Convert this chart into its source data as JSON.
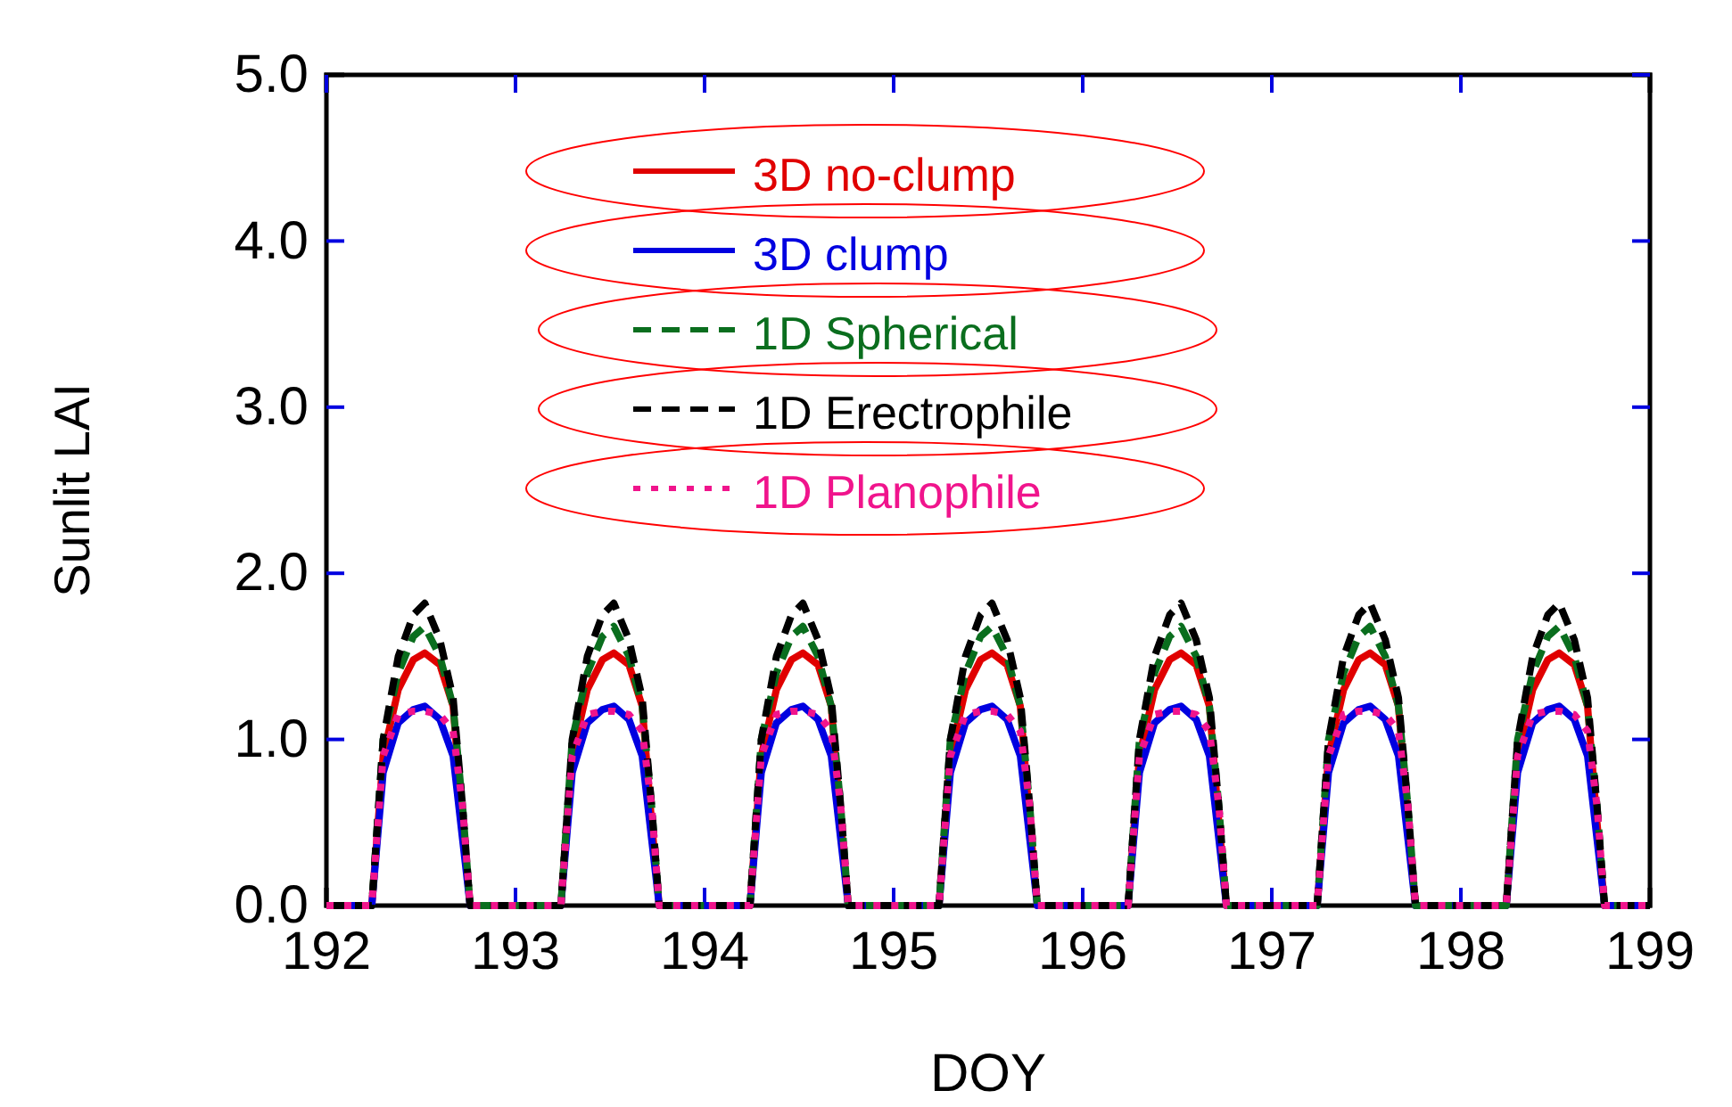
{
  "chart_data": {
    "type": "line",
    "xlabel": "DOY",
    "ylabel": "Sunlit LAI",
    "x": [
      192,
      192.24,
      192.3,
      192.38,
      192.46,
      192.52,
      192.6,
      192.67,
      192.72,
      192.76,
      193.24,
      193.3,
      193.38,
      193.46,
      193.52,
      193.6,
      193.67,
      193.72,
      193.76,
      194.24,
      194.3,
      194.38,
      194.46,
      194.52,
      194.6,
      194.67,
      194.72,
      194.76,
      195.24,
      195.3,
      195.38,
      195.46,
      195.52,
      195.6,
      195.67,
      195.72,
      195.76,
      196.24,
      196.3,
      196.38,
      196.46,
      196.52,
      196.6,
      196.67,
      196.72,
      196.76,
      197.24,
      197.3,
      197.38,
      197.46,
      197.52,
      197.6,
      197.67,
      197.72,
      197.76,
      198.24,
      198.3,
      198.38,
      198.46,
      198.52,
      198.6,
      198.67,
      198.72,
      198.76,
      199
    ],
    "series": [
      {
        "name": "3D no-clump",
        "color": "#e00000",
        "line_style": "solid",
        "values": [
          0,
          0,
          0.9,
          1.3,
          1.48,
          1.52,
          1.45,
          1.2,
          0.5,
          0,
          0,
          0.9,
          1.3,
          1.48,
          1.52,
          1.45,
          1.2,
          0.5,
          0,
          0,
          0.9,
          1.3,
          1.48,
          1.52,
          1.45,
          1.2,
          0.5,
          0,
          0,
          0.9,
          1.3,
          1.48,
          1.52,
          1.45,
          1.2,
          0.5,
          0,
          0,
          0.9,
          1.3,
          1.48,
          1.52,
          1.45,
          1.2,
          0.5,
          0,
          0,
          0.9,
          1.3,
          1.48,
          1.52,
          1.45,
          1.2,
          0.5,
          0,
          0,
          0.9,
          1.3,
          1.48,
          1.52,
          1.45,
          1.2,
          0.5,
          0,
          0
        ]
      },
      {
        "name": "3D clump",
        "color": "#0000e0",
        "line_style": "solid",
        "values": [
          0,
          0,
          0.8,
          1.1,
          1.18,
          1.2,
          1.12,
          0.9,
          0.4,
          0,
          0,
          0.8,
          1.1,
          1.18,
          1.2,
          1.12,
          0.9,
          0.4,
          0,
          0,
          0.8,
          1.1,
          1.18,
          1.2,
          1.12,
          0.9,
          0.4,
          0,
          0,
          0.8,
          1.1,
          1.18,
          1.2,
          1.12,
          0.9,
          0.4,
          0,
          0,
          0.8,
          1.1,
          1.18,
          1.2,
          1.12,
          0.9,
          0.4,
          0,
          0,
          0.8,
          1.1,
          1.18,
          1.2,
          1.12,
          0.9,
          0.4,
          0,
          0,
          0.8,
          1.1,
          1.18,
          1.2,
          1.12,
          0.9,
          0.4,
          0,
          0
        ]
      },
      {
        "name": "1D Spherical",
        "color": "#0a6e1e",
        "line_style": "dashed",
        "values": [
          0,
          0,
          1.0,
          1.4,
          1.62,
          1.68,
          1.5,
          1.2,
          0.6,
          0,
          0,
          1.0,
          1.4,
          1.62,
          1.68,
          1.5,
          1.2,
          0.6,
          0,
          0,
          1.0,
          1.4,
          1.62,
          1.68,
          1.5,
          1.2,
          0.6,
          0,
          0,
          1.0,
          1.4,
          1.62,
          1.68,
          1.5,
          1.2,
          0.6,
          0,
          0,
          1.0,
          1.4,
          1.62,
          1.68,
          1.5,
          1.2,
          0.6,
          0,
          0,
          1.0,
          1.4,
          1.62,
          1.68,
          1.5,
          1.2,
          0.6,
          0,
          0,
          1.0,
          1.4,
          1.62,
          1.68,
          1.5,
          1.2,
          0.6,
          0,
          0
        ]
      },
      {
        "name": "1D Erectrophile",
        "color": "#000000",
        "line_style": "dashed",
        "values": [
          0,
          0,
          1.0,
          1.5,
          1.75,
          1.82,
          1.6,
          1.25,
          0.6,
          0,
          0,
          1.0,
          1.5,
          1.75,
          1.82,
          1.6,
          1.25,
          0.6,
          0,
          0,
          1.0,
          1.5,
          1.75,
          1.82,
          1.6,
          1.25,
          0.6,
          0,
          0,
          1.0,
          1.5,
          1.75,
          1.82,
          1.6,
          1.25,
          0.6,
          0,
          0,
          1.0,
          1.5,
          1.75,
          1.82,
          1.6,
          1.25,
          0.6,
          0,
          0,
          1.0,
          1.5,
          1.75,
          1.82,
          1.6,
          1.25,
          0.6,
          0,
          0,
          1.0,
          1.5,
          1.75,
          1.82,
          1.6,
          1.25,
          0.6,
          0,
          0
        ]
      },
      {
        "name": "1D Planophile",
        "color": "#f0148c",
        "line_style": "dotted",
        "values": [
          0,
          0,
          0.9,
          1.15,
          1.17,
          1.17,
          1.15,
          1.05,
          0.6,
          0,
          0,
          0.9,
          1.15,
          1.17,
          1.17,
          1.15,
          1.05,
          0.6,
          0,
          0,
          0.9,
          1.15,
          1.17,
          1.17,
          1.15,
          1.05,
          0.6,
          0,
          0,
          0.9,
          1.15,
          1.17,
          1.17,
          1.15,
          1.05,
          0.6,
          0,
          0,
          0.9,
          1.15,
          1.17,
          1.17,
          1.15,
          1.05,
          0.6,
          0,
          0,
          0.9,
          1.15,
          1.17,
          1.17,
          1.15,
          1.05,
          0.6,
          0,
          0,
          0.9,
          1.15,
          1.17,
          1.17,
          1.15,
          1.05,
          0.6,
          0,
          0
        ]
      }
    ],
    "xlim": [
      192,
      199
    ],
    "xticks": [
      192,
      193,
      194,
      195,
      196,
      197,
      198,
      199
    ],
    "ylim": [
      0,
      5
    ],
    "yticks": [
      {
        "value": 0,
        "label": "0.0"
      },
      {
        "value": 1,
        "label": "1.0"
      },
      {
        "value": 2,
        "label": "2.0"
      },
      {
        "value": 3,
        "label": "3.0"
      },
      {
        "value": 4,
        "label": "4.0"
      },
      {
        "value": 5,
        "label": "5.0"
      }
    ],
    "legend": "top",
    "grid": false,
    "marker": "none"
  }
}
